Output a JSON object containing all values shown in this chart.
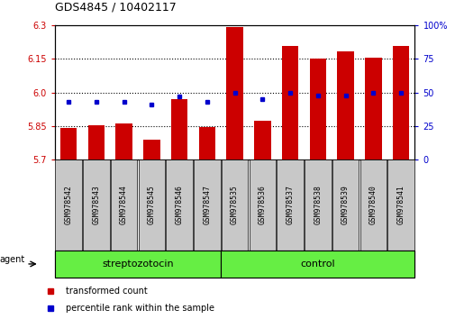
{
  "title": "GDS4845 / 10402117",
  "samples": [
    "GSM978542",
    "GSM978543",
    "GSM978544",
    "GSM978545",
    "GSM978546",
    "GSM978547",
    "GSM978535",
    "GSM978536",
    "GSM978537",
    "GSM978538",
    "GSM978539",
    "GSM978540",
    "GSM978541"
  ],
  "red_values": [
    5.84,
    5.855,
    5.86,
    5.79,
    5.97,
    5.845,
    6.295,
    5.875,
    6.21,
    6.15,
    6.185,
    6.155,
    6.21
  ],
  "blue_values_pct": [
    43,
    43,
    43,
    41,
    47,
    43,
    50,
    45,
    50,
    48,
    48,
    50,
    50
  ],
  "y_min": 5.7,
  "y_max": 6.3,
  "yticks_left": [
    5.7,
    5.85,
    6.0,
    6.15,
    6.3
  ],
  "yticks_right": [
    0,
    25,
    50,
    75,
    100
  ],
  "bar_color": "#cc0000",
  "dot_color": "#0000cc",
  "group1_label": "streptozotocin",
  "group2_label": "control",
  "group1_count": 6,
  "group2_count": 7,
  "agent_label": "agent",
  "legend_bar": "transformed count",
  "legend_dot": "percentile rank within the sample",
  "tick_bg": "#c8c8c8",
  "green_bg": "#66ee44",
  "dotted_lines": [
    5.85,
    6.0,
    6.15
  ]
}
